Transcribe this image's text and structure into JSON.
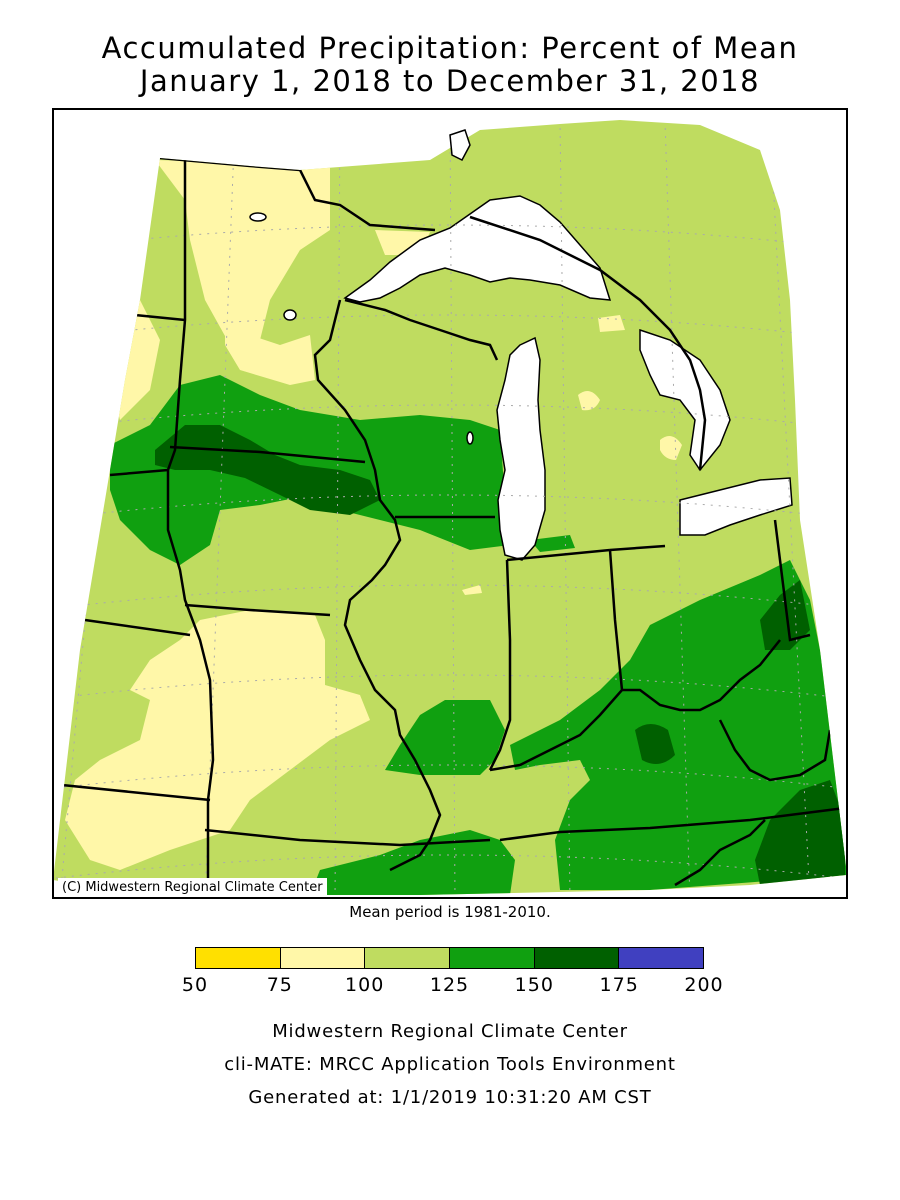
{
  "title_line1": "Accumulated Precipitation: Percent of Mean",
  "title_line2": "January 1, 2018 to December 31, 2018",
  "copyright": "(C) Midwestern Regional Climate Center",
  "mean_period": "Mean period is 1981-2010.",
  "legend": {
    "ticks": [
      "50",
      "75",
      "100",
      "125",
      "150",
      "175",
      "200"
    ],
    "bins": [
      {
        "range": "50-75",
        "color": "#ffe000"
      },
      {
        "range": "75-100",
        "color": "#fff7a8"
      },
      {
        "range": "100-125",
        "color": "#bfdc60"
      },
      {
        "range": "125-150",
        "color": "#10a010"
      },
      {
        "range": "150-175",
        "color": "#006000"
      },
      {
        "range": "175-200",
        "color": "#4040c0"
      }
    ]
  },
  "footer": {
    "line1": "Midwestern Regional Climate Center",
    "line2": "cli-MATE: MRCC Application Tools Environment",
    "line3": "Generated at: 1/1/2019 10:31:20 AM CST"
  },
  "map_colors": {
    "light_yellow": "#fff7a8",
    "light_green": "#bfdc60",
    "green": "#10a010",
    "dark_green": "#006000",
    "water": "#ffffff",
    "border": "#000000"
  }
}
